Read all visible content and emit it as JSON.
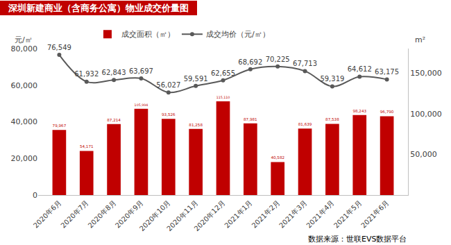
{
  "chart_data": {
    "type": "bar+line",
    "title": "深圳新建商业（含商务公寓）物业成交价量图",
    "y_label": "元/㎡",
    "y2_label": "m²",
    "source": "数据来源：世联EVS数据平台",
    "categories": [
      "2020年6月",
      "2020年7月",
      "2020年8月",
      "2020年9月",
      "2020年10月",
      "2020年11月",
      "2020年12月",
      "2021年1月",
      "2021年2月",
      "2021年3月",
      "2021年4月",
      "2021年5月",
      "2021年6月"
    ],
    "series": [
      {
        "name": "成交面积（㎡）",
        "type": "bar",
        "axis": "y2",
        "color": "#c00000",
        "values": [
          79967,
          54171,
          87214,
          105994,
          93526,
          81258,
          115110,
          87981,
          40582,
          81639,
          87538,
          98243,
          96790
        ],
        "value_labels": [
          "79,967",
          "54,171",
          "87,214",
          "105,994",
          "93,526",
          "81,258",
          "115,110",
          "87,981",
          "40,582",
          "81,639",
          "87,538",
          "98,243",
          "96,790"
        ]
      },
      {
        "name": "成交均价（元/㎡）",
        "type": "line",
        "marker": "circle",
        "color": "#595959",
        "values": [
          76549,
          61932,
          62843,
          63697,
          56027,
          59591,
          62655,
          68692,
          70225,
          67713,
          59319,
          64612,
          63175
        ],
        "value_labels": [
          "76,549",
          "61,932",
          "62,843",
          "63,697",
          "56,027",
          "59,591",
          "62,655",
          "68,692",
          "70,225",
          "67,713",
          "59,319",
          "64,612",
          "63,175"
        ]
      }
    ],
    "ylim": [
      0,
      80000
    ],
    "yticks": [
      0,
      {
        "value": 20000,
        "label": "20,000"
      },
      {
        "value": 40000,
        "label": "40,000"
      },
      {
        "value": 60000,
        "label": "60,000"
      },
      {
        "value": 80000,
        "label": "80,000"
      }
    ],
    "y2lim": [
      0,
      180000
    ],
    "y2ticks": [
      {
        "value": 50000,
        "label": "50,000"
      },
      {
        "value": 100000,
        "label": "100,000"
      },
      {
        "value": 150000,
        "label": "150,000"
      }
    ],
    "grid": false,
    "legend": "top",
    "data_labels": true
  }
}
